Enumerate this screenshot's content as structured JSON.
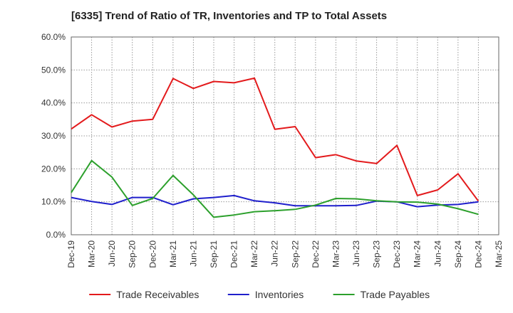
{
  "chart_data": {
    "type": "line",
    "title": "[6335]  Trend of Ratio of TR, Inventories and TP to Total Assets",
    "xlabel": "",
    "ylabel": "",
    "ylim": [
      0,
      60
    ],
    "grid": true,
    "legend_position": "bottom",
    "x_ticks": [
      "Dec-19",
      "Mar-20",
      "Jun-20",
      "Sep-20",
      "Dec-20",
      "Mar-21",
      "Jun-21",
      "Sep-21",
      "Dec-21",
      "Mar-22",
      "Jun-22",
      "Sep-22",
      "Dec-22",
      "Mar-23",
      "Jun-23",
      "Sep-23",
      "Dec-23",
      "Mar-24",
      "Jun-24",
      "Sep-24",
      "Dec-24",
      "Mar-25"
    ],
    "y_ticks": [
      "0.0%",
      "10.0%",
      "20.0%",
      "30.0%",
      "40.0%",
      "50.0%",
      "60.0%"
    ],
    "x": [
      "Dec-19",
      "Mar-20",
      "Jun-20",
      "Sep-20",
      "Dec-20",
      "Mar-21",
      "Jun-21",
      "Sep-21",
      "Dec-21",
      "Mar-22",
      "Jun-22",
      "Sep-22",
      "Dec-22",
      "Mar-23",
      "Jun-23",
      "Sep-23",
      "Dec-23",
      "Mar-24",
      "Jun-24",
      "Sep-24",
      "Dec-24"
    ],
    "series": [
      {
        "name": "Trade Receivables",
        "color": "#e31a1c",
        "values": [
          32.1,
          36.4,
          32.7,
          34.5,
          35.0,
          47.4,
          44.4,
          46.5,
          46.1,
          47.5,
          32.0,
          32.8,
          23.4,
          24.3,
          22.4,
          21.6,
          27.1,
          11.9,
          13.6,
          18.5,
          10.2
        ]
      },
      {
        "name": "Inventories",
        "color": "#1f1fcc",
        "values": [
          11.3,
          10.1,
          9.2,
          11.3,
          11.3,
          9.1,
          10.9,
          11.3,
          11.9,
          10.3,
          9.7,
          8.8,
          8.8,
          8.8,
          8.9,
          10.2,
          10.0,
          8.5,
          9.0,
          9.2,
          10.0
        ]
      },
      {
        "name": "Trade Payables",
        "color": "#2ca02c",
        "values": [
          12.8,
          22.5,
          17.5,
          8.9,
          11.0,
          18.0,
          12.1,
          5.3,
          6.0,
          7.0,
          7.3,
          7.7,
          9.0,
          11.0,
          10.9,
          10.3,
          10.0,
          9.9,
          9.3,
          7.9,
          6.2
        ]
      }
    ]
  }
}
